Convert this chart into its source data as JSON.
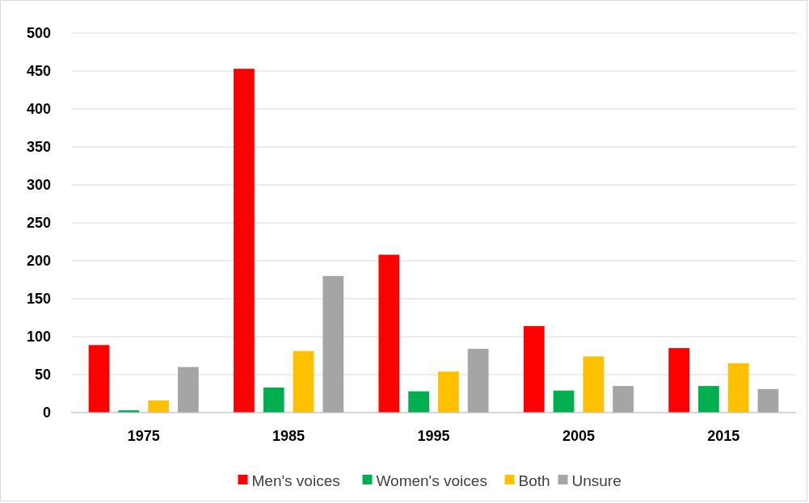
{
  "chart_data": {
    "type": "bar",
    "categories": [
      "1975",
      "1985",
      "1995",
      "2005",
      "2015"
    ],
    "series": [
      {
        "name": "Men's voices",
        "color": "#ff0000",
        "values": [
          89,
          453,
          208,
          114,
          85
        ]
      },
      {
        "name": "Women's voices",
        "color": "#00b050",
        "values": [
          3,
          33,
          28,
          29,
          35
        ]
      },
      {
        "name": "Both",
        "color": "#ffc000",
        "values": [
          16,
          81,
          54,
          74,
          65
        ]
      },
      {
        "name": "Unsure",
        "color": "#a5a5a5",
        "values": [
          60,
          180,
          84,
          35,
          31
        ]
      }
    ],
    "ylim": [
      0,
      500
    ],
    "yticks": [
      0,
      50,
      100,
      150,
      200,
      250,
      300,
      350,
      400,
      450,
      500
    ],
    "grid": "y",
    "legend": "bottom"
  }
}
